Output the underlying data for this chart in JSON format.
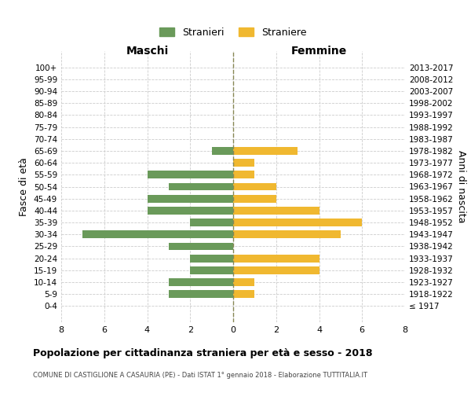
{
  "age_groups": [
    "100+",
    "95-99",
    "90-94",
    "85-89",
    "80-84",
    "75-79",
    "70-74",
    "65-69",
    "60-64",
    "55-59",
    "50-54",
    "45-49",
    "40-44",
    "35-39",
    "30-34",
    "25-29",
    "20-24",
    "15-19",
    "10-14",
    "5-9",
    "0-4"
  ],
  "birth_years": [
    "≤ 1917",
    "1918-1922",
    "1923-1927",
    "1928-1932",
    "1933-1937",
    "1938-1942",
    "1943-1947",
    "1948-1952",
    "1953-1957",
    "1958-1962",
    "1963-1967",
    "1968-1972",
    "1973-1977",
    "1978-1982",
    "1983-1987",
    "1988-1992",
    "1993-1997",
    "1998-2002",
    "2003-2007",
    "2008-2012",
    "2013-2017"
  ],
  "males": [
    0,
    0,
    0,
    0,
    0,
    0,
    0,
    1,
    0,
    4,
    3,
    4,
    4,
    2,
    7,
    3,
    2,
    2,
    3,
    3,
    0
  ],
  "females": [
    0,
    0,
    0,
    0,
    0,
    0,
    0,
    3,
    1,
    1,
    2,
    2,
    4,
    6,
    5,
    0,
    4,
    4,
    1,
    1,
    0
  ],
  "male_color": "#6a9a5a",
  "female_color": "#f0b830",
  "background_color": "#ffffff",
  "grid_color": "#cccccc",
  "title": "Popolazione per cittadinanza straniera per età e sesso - 2018",
  "subtitle": "COMUNE DI CASTIGLIONE A CASAURIA (PE) - Dati ISTAT 1° gennaio 2018 - Elaborazione TUTTITALIA.IT",
  "xlabel_left": "Maschi",
  "xlabel_right": "Femmine",
  "ylabel_left": "Fasce di età",
  "ylabel_right": "Anni di nascita",
  "legend_male": "Stranieri",
  "legend_female": "Straniere",
  "xlim": 8,
  "centerline_color": "#888855"
}
